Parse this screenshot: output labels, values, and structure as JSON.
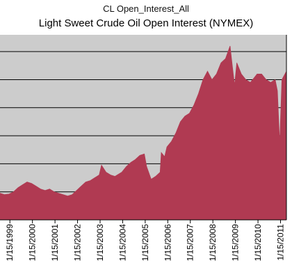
{
  "chart_data": {
    "type": "area",
    "supertitle": "CL Open_Interest_All",
    "title": "Light Sweet Crude Oil Open Interest (NYMEX)",
    "xlabel": "",
    "ylabel": "",
    "y_tick_labels_shown": false,
    "grid": "horizontal",
    "legend": "none",
    "plot_background": "#cccccc",
    "series_color": "#b03a52",
    "x_tick_labels": [
      "1/15/1999",
      "1/15/2000",
      "1/15/2001",
      "1/15/2002",
      "1/15/2003",
      "1/15/2004",
      "1/15/2005",
      "1/15/2006",
      "1/15/2007",
      "1/15/2008",
      "1/15/2009",
      "1/15/2010",
      "1/15/2011"
    ],
    "xlim": [
      1998.6,
      2011.3
    ],
    "ylim": [
      0,
      6.6
    ],
    "y_gridlines": [
      1,
      2,
      3,
      4,
      5,
      6
    ],
    "series": [
      {
        "x": [
          1998.6,
          1998.8,
          1999.0,
          1999.2,
          1999.4,
          1999.6,
          1999.8,
          2000.0,
          2000.2,
          2000.4,
          2000.6,
          2000.8,
          2001.0,
          2001.2,
          2001.4,
          2001.6,
          2001.8,
          2002.0,
          2002.2,
          2002.4,
          2002.6,
          2002.8,
          2003.0,
          2003.1,
          2003.3,
          2003.5,
          2003.7,
          2004.0,
          2004.2,
          2004.4,
          2004.6,
          2004.8,
          2005.0,
          2005.1,
          2005.3,
          2005.5,
          2005.7,
          2005.75,
          2005.9,
          2006.0,
          2006.2,
          2006.4,
          2006.6,
          2006.8,
          2007.0,
          2007.2,
          2007.4,
          2007.6,
          2007.8,
          2008.0,
          2008.2,
          2008.4,
          2008.6,
          2008.8,
          2008.9,
          2009.0,
          2009.1,
          2009.3,
          2009.5,
          2009.7,
          2009.9,
          2010.0,
          2010.2,
          2010.4,
          2010.6,
          2010.8,
          2010.9,
          2011.0,
          2011.1,
          2011.3
        ],
        "values": [
          0.95,
          0.9,
          0.92,
          1.0,
          1.15,
          1.25,
          1.35,
          1.3,
          1.2,
          1.1,
          1.05,
          1.1,
          1.0,
          0.95,
          0.9,
          0.85,
          0.9,
          1.05,
          1.2,
          1.35,
          1.4,
          1.5,
          1.6,
          1.95,
          1.7,
          1.6,
          1.55,
          1.7,
          1.9,
          2.05,
          2.15,
          2.3,
          2.35,
          1.9,
          1.45,
          1.55,
          1.7,
          2.4,
          2.25,
          2.6,
          2.8,
          3.1,
          3.5,
          3.7,
          3.8,
          4.1,
          4.5,
          5.0,
          5.3,
          5.0,
          5.2,
          5.6,
          5.75,
          6.2,
          5.5,
          4.8,
          5.6,
          5.2,
          5.0,
          4.9,
          5.1,
          5.2,
          5.2,
          5.0,
          4.9,
          5.0,
          4.6,
          2.7,
          5.0,
          5.3
        ]
      }
    ]
  }
}
